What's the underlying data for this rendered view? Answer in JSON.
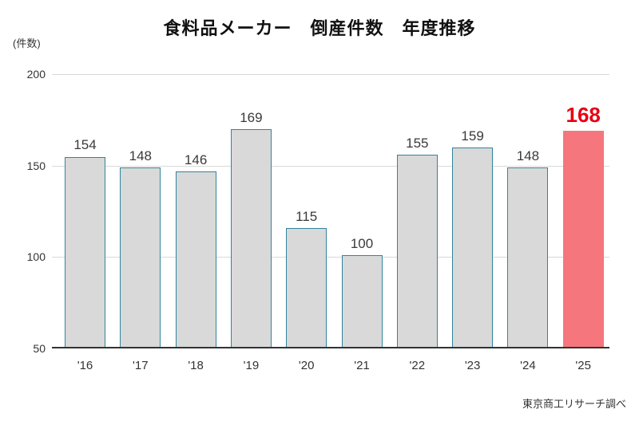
{
  "title": "食料品メーカー　倒産件数　年度推移",
  "unit_label": "(件数)",
  "source_note": "東京商工リサーチ調べ",
  "chart_data": {
    "type": "bar",
    "title": "食料品メーカー　倒産件数　年度推移",
    "ylabel": "(件数)",
    "categories": [
      "'16",
      "'17",
      "'18",
      "'19",
      "'20",
      "'21",
      "'22",
      "'23",
      "'24",
      "'25"
    ],
    "values": [
      154,
      148,
      146,
      169,
      115,
      100,
      155,
      159,
      148,
      168
    ],
    "highlight_index": 9,
    "ylim": [
      50,
      200
    ],
    "yticks": [
      200,
      150,
      100,
      50
    ],
    "grid": "horizontal",
    "legend": "none",
    "colors": {
      "bar_fill": "#d9d9d9",
      "bar_border": "#31849b",
      "highlight_fill": "#f5767d",
      "highlight_label": "#e60012",
      "gridline": "#d9d9d9",
      "axis_line": "#333333",
      "text": "#333333"
    }
  }
}
